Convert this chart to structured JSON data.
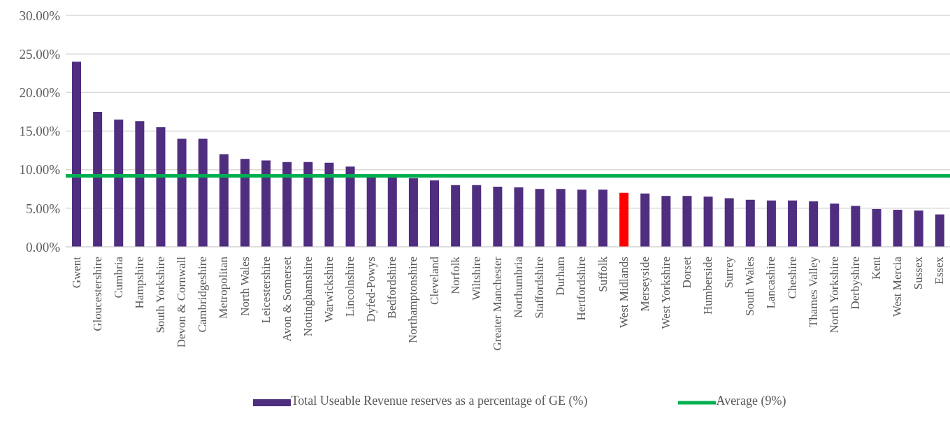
{
  "chart_data": {
    "type": "bar",
    "categories": [
      "Gwent",
      "Gloucestershire",
      "Cumbria",
      "Hampshire",
      "South Yorkshire",
      "Devon & Cornwall",
      "Cambridgeshire",
      "Metropolitan",
      "North Wales",
      "Leicestershire",
      "Avon & Somerset",
      "Nottinghamshire",
      "Warwickshire",
      "Lincolnshire",
      "Dyfed-Powys",
      "Bedfordshire",
      "Northamptonshire",
      "Cleveland",
      "Norfolk",
      "Wiltshire",
      "Greater Manchester",
      "Northumbria",
      "Staffordshire",
      "Durham",
      "Hertfordshire",
      "Suffolk",
      "West Midlands",
      "Merseyside",
      "West Yorkshire",
      "Dorset",
      "Humberside",
      "Surrey",
      "South Wales",
      "Lancashire",
      "Cheshire",
      "Thames Valley",
      "North Yorkshire",
      "Derbyshire",
      "Kent",
      "West Mercia",
      "Sussex",
      "Essex"
    ],
    "series": [
      {
        "name": "Total Useable Revenue reserves as a percentage of GE (%)",
        "color": "#4f2d7f",
        "colors": [
          "#4f2d7f",
          "#4f2d7f",
          "#4f2d7f",
          "#4f2d7f",
          "#4f2d7f",
          "#4f2d7f",
          "#4f2d7f",
          "#4f2d7f",
          "#4f2d7f",
          "#4f2d7f",
          "#4f2d7f",
          "#4f2d7f",
          "#4f2d7f",
          "#4f2d7f",
          "#4f2d7f",
          "#4f2d7f",
          "#4f2d7f",
          "#4f2d7f",
          "#4f2d7f",
          "#4f2d7f",
          "#4f2d7f",
          "#4f2d7f",
          "#4f2d7f",
          "#4f2d7f",
          "#4f2d7f",
          "#4f2d7f",
          "#ff0000",
          "#4f2d7f",
          "#4f2d7f",
          "#4f2d7f",
          "#4f2d7f",
          "#4f2d7f",
          "#4f2d7f",
          "#4f2d7f",
          "#4f2d7f",
          "#4f2d7f",
          "#4f2d7f",
          "#4f2d7f",
          "#4f2d7f",
          "#4f2d7f",
          "#4f2d7f",
          "#4f2d7f"
        ],
        "values": [
          24.0,
          17.5,
          16.5,
          16.3,
          15.5,
          14.0,
          14.0,
          12.0,
          11.4,
          11.2,
          11.0,
          11.0,
          10.9,
          10.4,
          9.1,
          9.0,
          8.9,
          8.6,
          8.0,
          8.0,
          7.8,
          7.7,
          7.5,
          7.5,
          7.4,
          7.4,
          7.0,
          6.9,
          6.6,
          6.6,
          6.5,
          6.3,
          6.1,
          6.0,
          6.0,
          5.9,
          5.6,
          5.3,
          4.9,
          4.8,
          4.7,
          4.2
        ]
      }
    ],
    "ref_lines": [
      {
        "axis": "y",
        "value": 9.2,
        "label": "Average (9%)",
        "color": "#00b050"
      }
    ],
    "ylim": [
      0,
      30
    ],
    "yticks": [
      {
        "value": 0,
        "label": "0.00%"
      },
      {
        "value": 5,
        "label": "5.00%"
      },
      {
        "value": 10,
        "label": "10.00%"
      },
      {
        "value": 15,
        "label": "15.00%"
      },
      {
        "value": 20,
        "label": "20.00%"
      },
      {
        "value": 25,
        "label": "25.00%"
      },
      {
        "value": 30,
        "label": "30.00%"
      }
    ],
    "grid": "y",
    "legend": "bottom"
  }
}
